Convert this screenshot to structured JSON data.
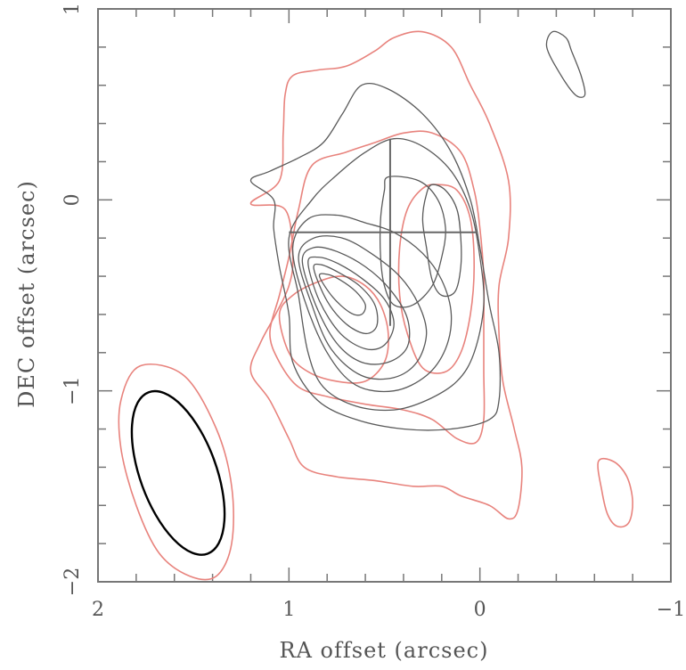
{
  "chart_data": {
    "type": "contour",
    "xlabel": "RA offset (arcsec)",
    "ylabel": "DEC offset (arcsec)",
    "xlim": [
      2,
      -1
    ],
    "ylim": [
      -2,
      1
    ],
    "x_ticks": [
      {
        "value": 2,
        "label": "2"
      },
      {
        "value": 1,
        "label": "1"
      },
      {
        "value": 0,
        "label": "0"
      },
      {
        "value": -1,
        "label": "−1"
      }
    ],
    "y_ticks": [
      {
        "value": 1,
        "label": "1"
      },
      {
        "value": 0,
        "label": "0"
      },
      {
        "value": -1,
        "label": "−1"
      },
      {
        "value": -2,
        "label": "−2"
      }
    ],
    "grid": false,
    "colors": {
      "red": "#e8837d",
      "black": "#5a5a5a",
      "beam_fill_black": "#000000"
    },
    "cross": {
      "x": 0.47,
      "y": -0.17,
      "x_range": [
        1.0,
        0.02
      ],
      "y_range": [
        0.32,
        -0.66
      ]
    },
    "red_contours": [
      [
        [
          1.2,
          -0.02
        ],
        [
          1.02,
          -0.05
        ],
        [
          0.98,
          -0.3
        ],
        [
          1.0,
          -0.45
        ],
        [
          1.07,
          -0.6
        ],
        [
          1.15,
          -0.75
        ],
        [
          1.2,
          -0.9
        ],
        [
          1.1,
          -1.05
        ],
        [
          1.0,
          -1.25
        ],
        [
          0.92,
          -1.4
        ],
        [
          0.75,
          -1.45
        ],
        [
          0.55,
          -1.47
        ],
        [
          0.35,
          -1.5
        ],
        [
          0.2,
          -1.5
        ],
        [
          0.1,
          -1.55
        ],
        [
          -0.05,
          -1.6
        ],
        [
          -0.15,
          -1.67
        ],
        [
          -0.2,
          -1.62
        ],
        [
          -0.22,
          -1.4
        ],
        [
          -0.18,
          -1.2
        ],
        [
          -0.12,
          -0.95
        ],
        [
          -0.1,
          -0.7
        ],
        [
          -0.1,
          -0.45
        ],
        [
          -0.15,
          -0.2
        ],
        [
          -0.15,
          0.1
        ],
        [
          -0.05,
          0.4
        ],
        [
          0.05,
          0.6
        ],
        [
          0.15,
          0.8
        ],
        [
          0.3,
          0.88
        ],
        [
          0.45,
          0.85
        ],
        [
          0.55,
          0.78
        ],
        [
          0.7,
          0.7
        ],
        [
          0.85,
          0.68
        ],
        [
          0.98,
          0.65
        ],
        [
          1.02,
          0.55
        ],
        [
          1.03,
          0.35
        ],
        [
          1.05,
          0.1
        ],
        [
          1.2,
          -0.02
        ]
      ],
      [
        [
          0.88,
          0.18
        ],
        [
          0.95,
          -0.05
        ],
        [
          1.0,
          -0.3
        ],
        [
          1.05,
          -0.5
        ],
        [
          1.1,
          -0.7
        ],
        [
          1.05,
          -0.85
        ],
        [
          0.95,
          -0.98
        ],
        [
          0.8,
          -1.03
        ],
        [
          0.6,
          -1.07
        ],
        [
          0.4,
          -1.1
        ],
        [
          0.25,
          -1.15
        ],
        [
          0.12,
          -1.25
        ],
        [
          0.02,
          -1.27
        ],
        [
          -0.02,
          -1.15
        ],
        [
          -0.02,
          -0.9
        ],
        [
          -0.02,
          -0.65
        ],
        [
          -0.02,
          -0.4
        ],
        [
          0.0,
          -0.15
        ],
        [
          0.03,
          0.05
        ],
        [
          0.1,
          0.25
        ],
        [
          0.25,
          0.35
        ],
        [
          0.4,
          0.35
        ],
        [
          0.55,
          0.3
        ],
        [
          0.7,
          0.25
        ],
        [
          0.88,
          0.18
        ]
      ],
      [
        [
          0.22,
          0.08
        ],
        [
          0.12,
          0.05
        ],
        [
          0.05,
          -0.1
        ],
        [
          0.03,
          -0.35
        ],
        [
          0.05,
          -0.6
        ],
        [
          0.1,
          -0.8
        ],
        [
          0.18,
          -0.9
        ],
        [
          0.3,
          -0.88
        ],
        [
          0.38,
          -0.7
        ],
        [
          0.42,
          -0.5
        ],
        [
          0.42,
          -0.25
        ],
        [
          0.38,
          -0.05
        ],
        [
          0.3,
          0.06
        ],
        [
          0.22,
          0.08
        ]
      ],
      [
        [
          1.05,
          -0.6
        ],
        [
          1.0,
          -0.8
        ],
        [
          0.9,
          -0.9
        ],
        [
          0.75,
          -0.95
        ],
        [
          0.6,
          -0.95
        ],
        [
          0.5,
          -0.85
        ],
        [
          0.48,
          -0.7
        ],
        [
          0.52,
          -0.55
        ],
        [
          0.6,
          -0.45
        ],
        [
          0.72,
          -0.4
        ],
        [
          0.85,
          -0.43
        ],
        [
          0.98,
          -0.5
        ],
        [
          1.05,
          -0.6
        ]
      ],
      [
        [
          1.78,
          -0.87
        ],
        [
          1.55,
          -0.92
        ],
        [
          1.38,
          -1.2
        ],
        [
          1.3,
          -1.5
        ],
        [
          1.3,
          -1.8
        ],
        [
          1.38,
          -1.97
        ],
        [
          1.52,
          -1.97
        ],
        [
          1.68,
          -1.85
        ],
        [
          1.8,
          -1.6
        ],
        [
          1.88,
          -1.3
        ],
        [
          1.88,
          -1.05
        ],
        [
          1.78,
          -0.87
        ]
      ],
      [
        [
          -0.62,
          -1.37
        ],
        [
          -0.7,
          -1.37
        ],
        [
          -0.77,
          -1.45
        ],
        [
          -0.8,
          -1.58
        ],
        [
          -0.78,
          -1.69
        ],
        [
          -0.72,
          -1.71
        ],
        [
          -0.67,
          -1.65
        ],
        [
          -0.64,
          -1.53
        ],
        [
          -0.62,
          -1.37
        ]
      ]
    ],
    "black_contours": [
      [
        [
          1.08,
          0.0
        ],
        [
          1.2,
          0.1
        ],
        [
          1.1,
          0.15
        ],
        [
          0.95,
          0.22
        ],
        [
          0.82,
          0.3
        ],
        [
          0.72,
          0.45
        ],
        [
          0.62,
          0.6
        ],
        [
          0.48,
          0.58
        ],
        [
          0.3,
          0.45
        ],
        [
          0.15,
          0.25
        ],
        [
          0.05,
          0.0
        ],
        [
          0.0,
          -0.25
        ],
        [
          -0.05,
          -0.55
        ],
        [
          -0.1,
          -0.8
        ],
        [
          -0.1,
          -1.05
        ],
        [
          -0.05,
          -1.15
        ],
        [
          0.15,
          -1.2
        ],
        [
          0.4,
          -1.2
        ],
        [
          0.65,
          -1.15
        ],
        [
          0.85,
          -1.05
        ],
        [
          0.98,
          -0.85
        ],
        [
          1.0,
          -0.6
        ],
        [
          1.05,
          -0.35
        ],
        [
          1.08,
          -0.15
        ],
        [
          1.08,
          0.0
        ]
      ],
      [
        [
          1.0,
          -0.2
        ],
        [
          0.95,
          -0.5
        ],
        [
          0.9,
          -0.8
        ],
        [
          0.82,
          -0.98
        ],
        [
          0.65,
          -1.08
        ],
        [
          0.45,
          -1.1
        ],
        [
          0.28,
          -1.05
        ],
        [
          0.12,
          -0.95
        ],
        [
          0.03,
          -0.8
        ],
        [
          -0.02,
          -0.55
        ],
        [
          0.0,
          -0.3
        ],
        [
          0.05,
          -0.05
        ],
        [
          0.15,
          0.15
        ],
        [
          0.3,
          0.28
        ],
        [
          0.45,
          0.32
        ],
        [
          0.6,
          0.25
        ],
        [
          0.75,
          0.13
        ],
        [
          0.88,
          0.0
        ],
        [
          1.0,
          -0.2
        ]
      ],
      [
        [
          0.98,
          -0.25
        ],
        [
          0.92,
          -0.52
        ],
        [
          0.8,
          -0.8
        ],
        [
          0.65,
          -0.97
        ],
        [
          0.45,
          -1.0
        ],
        [
          0.28,
          -0.92
        ],
        [
          0.18,
          -0.78
        ],
        [
          0.15,
          -0.6
        ],
        [
          0.2,
          -0.42
        ],
        [
          0.3,
          -0.28
        ],
        [
          0.45,
          -0.17
        ],
        [
          0.6,
          -0.12
        ],
        [
          0.75,
          -0.08
        ],
        [
          0.9,
          -0.1
        ],
        [
          0.98,
          -0.25
        ]
      ],
      [
        [
          0.95,
          -0.3
        ],
        [
          0.88,
          -0.55
        ],
        [
          0.78,
          -0.78
        ],
        [
          0.62,
          -0.92
        ],
        [
          0.45,
          -0.93
        ],
        [
          0.33,
          -0.85
        ],
        [
          0.28,
          -0.7
        ],
        [
          0.32,
          -0.55
        ],
        [
          0.42,
          -0.4
        ],
        [
          0.57,
          -0.28
        ],
        [
          0.72,
          -0.2
        ],
        [
          0.87,
          -0.2
        ],
        [
          0.95,
          -0.3
        ]
      ],
      [
        [
          0.93,
          -0.32
        ],
        [
          0.86,
          -0.55
        ],
        [
          0.75,
          -0.75
        ],
        [
          0.62,
          -0.85
        ],
        [
          0.48,
          -0.85
        ],
        [
          0.38,
          -0.77
        ],
        [
          0.38,
          -0.62
        ],
        [
          0.47,
          -0.47
        ],
        [
          0.6,
          -0.35
        ],
        [
          0.75,
          -0.27
        ],
        [
          0.87,
          -0.25
        ],
        [
          0.93,
          -0.32
        ]
      ],
      [
        [
          0.9,
          -0.33
        ],
        [
          0.84,
          -0.53
        ],
        [
          0.73,
          -0.7
        ],
        [
          0.6,
          -0.78
        ],
        [
          0.5,
          -0.76
        ],
        [
          0.45,
          -0.65
        ],
        [
          0.5,
          -0.52
        ],
        [
          0.62,
          -0.41
        ],
        [
          0.75,
          -0.33
        ],
        [
          0.85,
          -0.3
        ],
        [
          0.9,
          -0.33
        ]
      ],
      [
        [
          0.87,
          -0.36
        ],
        [
          0.8,
          -0.53
        ],
        [
          0.7,
          -0.65
        ],
        [
          0.6,
          -0.7
        ],
        [
          0.54,
          -0.66
        ],
        [
          0.55,
          -0.55
        ],
        [
          0.63,
          -0.45
        ],
        [
          0.74,
          -0.38
        ],
        [
          0.83,
          -0.34
        ],
        [
          0.87,
          -0.36
        ]
      ],
      [
        [
          0.84,
          -0.4
        ],
        [
          0.77,
          -0.51
        ],
        [
          0.68,
          -0.59
        ],
        [
          0.62,
          -0.6
        ],
        [
          0.6,
          -0.55
        ],
        [
          0.65,
          -0.48
        ],
        [
          0.73,
          -0.42
        ],
        [
          0.8,
          -0.39
        ],
        [
          0.84,
          -0.4
        ]
      ],
      [
        [
          0.48,
          0.12
        ],
        [
          0.32,
          0.1
        ],
        [
          0.22,
          0.0
        ],
        [
          0.18,
          -0.15
        ],
        [
          0.2,
          -0.3
        ],
        [
          0.25,
          -0.45
        ],
        [
          0.35,
          -0.55
        ],
        [
          0.45,
          -0.55
        ],
        [
          0.5,
          -0.45
        ],
        [
          0.52,
          -0.3
        ],
        [
          0.52,
          -0.1
        ],
        [
          0.5,
          0.05
        ],
        [
          0.48,
          0.12
        ]
      ],
      [
        [
          0.25,
          0.08
        ],
        [
          0.18,
          0.05
        ],
        [
          0.12,
          -0.05
        ],
        [
          0.1,
          -0.2
        ],
        [
          0.1,
          -0.35
        ],
        [
          0.13,
          -0.48
        ],
        [
          0.2,
          -0.5
        ],
        [
          0.25,
          -0.42
        ],
        [
          0.28,
          -0.25
        ],
        [
          0.3,
          -0.1
        ],
        [
          0.28,
          0.03
        ],
        [
          0.25,
          0.08
        ]
      ],
      [
        [
          -0.45,
          0.85
        ],
        [
          -0.38,
          0.88
        ],
        [
          -0.35,
          0.8
        ],
        [
          -0.42,
          0.66
        ],
        [
          -0.5,
          0.55
        ],
        [
          -0.55,
          0.55
        ],
        [
          -0.53,
          0.65
        ],
        [
          -0.48,
          0.78
        ],
        [
          -0.45,
          0.85
        ]
      ]
    ],
    "beam": {
      "x": 1.58,
      "y": -1.43,
      "a": 0.45,
      "b": 0.2,
      "pa_deg": 20
    }
  }
}
